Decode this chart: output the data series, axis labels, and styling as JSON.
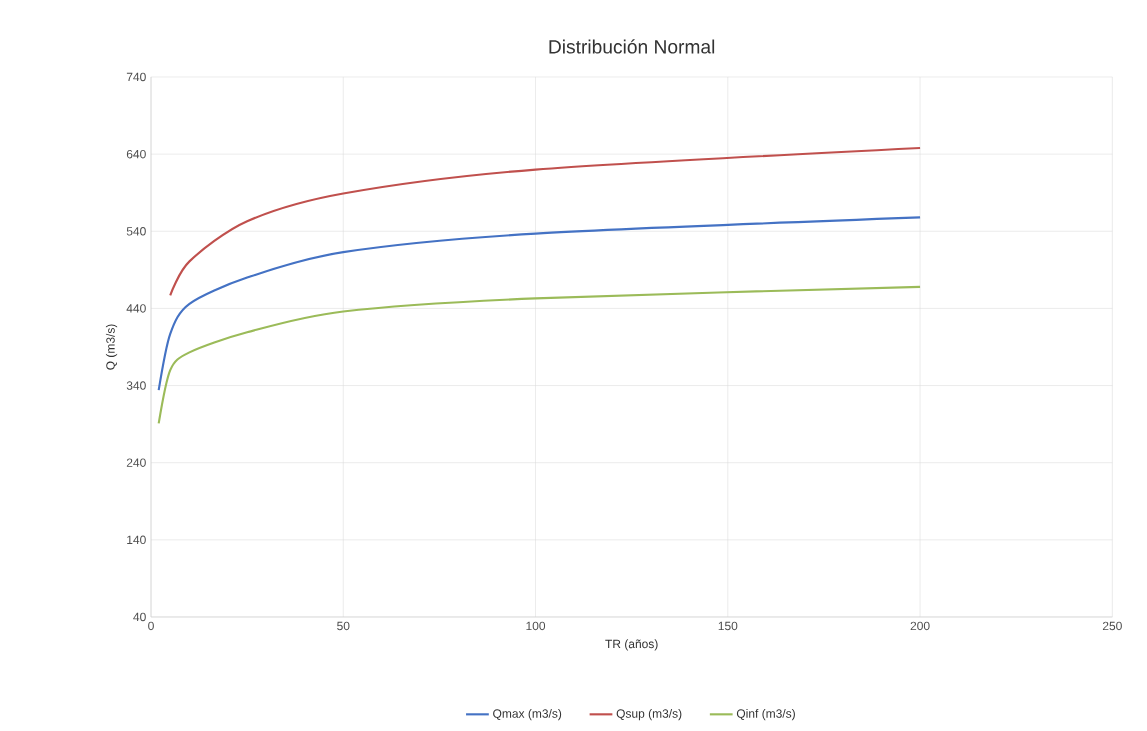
{
  "chart_data": {
    "type": "line",
    "title": "Distribución Normal",
    "xlabel": "TR (años)",
    "ylabel": "Q (m3/s)",
    "xlim": [
      0,
      250
    ],
    "xticks": [
      0,
      50,
      100,
      150,
      200,
      250
    ],
    "ylim": [
      40,
      740
    ],
    "yticks": [
      40,
      140,
      240,
      340,
      440,
      540,
      640,
      740
    ],
    "grid": true,
    "legend": "bottom",
    "marker": "none",
    "line_style": "solid",
    "series": [
      {
        "name": "Qmax (m3/s)",
        "color": "#4472c4",
        "x": [
          2,
          5,
          10,
          25,
          50,
          100,
          200
        ],
        "values": [
          334,
          407,
          446,
          480,
          513,
          537,
          558
        ]
      },
      {
        "name": "Qsup (m3/s)",
        "color": "#c0504d",
        "x": [
          5,
          10,
          25,
          50,
          100,
          200
        ],
        "values": [
          457,
          501,
          553,
          589,
          620,
          648
        ]
      },
      {
        "name": "Qinf (m3/s)",
        "color": "#9bbb59",
        "x": [
          2,
          5,
          10,
          25,
          50,
          100,
          200
        ],
        "values": [
          291,
          360,
          383,
          409,
          436,
          453,
          468
        ]
      }
    ]
  }
}
